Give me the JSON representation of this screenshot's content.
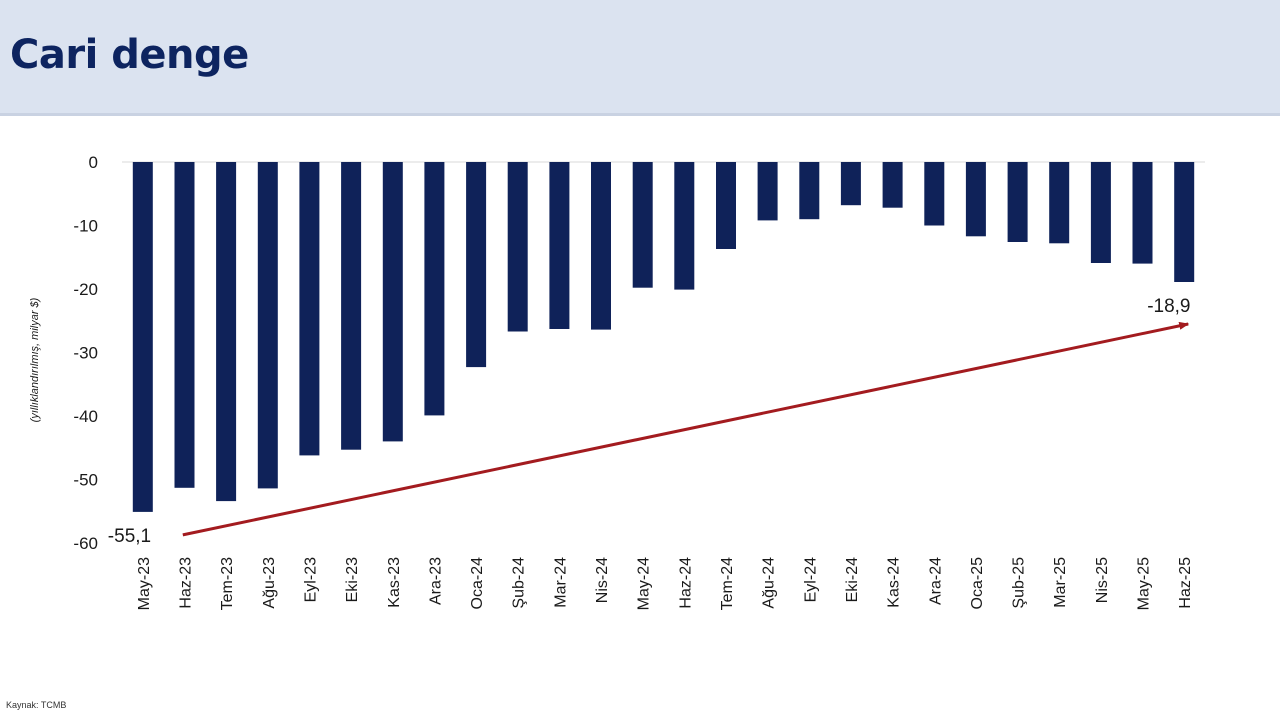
{
  "header": {
    "title": "Cari denge"
  },
  "footer": {
    "source": "Kaynak: TCMB"
  },
  "colors": {
    "bar": "#0f2259",
    "arrow": "#a31b1f",
    "header_bg": "#dbe3f0",
    "title": "#0d2460"
  },
  "chart_data": {
    "type": "bar",
    "title": "",
    "xlabel": "",
    "ylabel": "(yıllıklandırılmış, milyar $)",
    "ylim": [
      -60,
      0
    ],
    "yticks": [
      0,
      -10,
      -20,
      -30,
      -40,
      -50,
      -60
    ],
    "grid": false,
    "categories": [
      "May-23",
      "Haz-23",
      "Tem-23",
      "Ağu-23",
      "Eyl-23",
      "Eki-23",
      "Kas-23",
      "Ara-23",
      "Oca-24",
      "Şub-24",
      "Mar-24",
      "Nis-24",
      "May-24",
      "Haz-24",
      "Tem-24",
      "Ağu-24",
      "Eyl-24",
      "Eki-24",
      "Kas-24",
      "Ara-24",
      "Oca-25",
      "Şub-25",
      "Mar-25",
      "Nis-25",
      "May-25",
      "Haz-25"
    ],
    "values": [
      -55.1,
      -51.3,
      -53.4,
      -51.4,
      -46.2,
      -45.3,
      -44.0,
      -39.9,
      -32.3,
      -26.7,
      -26.3,
      -26.4,
      -19.8,
      -20.1,
      -13.7,
      -9.2,
      -9.0,
      -6.8,
      -7.2,
      -10.0,
      -11.7,
      -12.6,
      -12.8,
      -15.9,
      -16.0,
      -18.9
    ],
    "annotations": [
      {
        "label": "-55,1",
        "category": "May-23",
        "value": -55.1
      },
      {
        "label": "-18,9",
        "category": "Haz-25",
        "value": -18.9
      }
    ],
    "trend_arrow": {
      "from_category": "May-23",
      "to_category": "Haz-25"
    }
  }
}
